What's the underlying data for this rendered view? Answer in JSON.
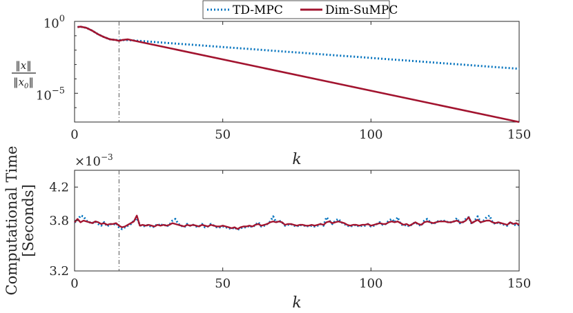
{
  "colors": {
    "td_mpc": "#0072BD",
    "dim_sumpc": "#A2142F",
    "axis": "#262626",
    "vline": "#555555"
  },
  "chart_data": [
    {
      "type": "line",
      "name": "state-norm",
      "yscale": "log",
      "xlim": [
        0,
        150
      ],
      "ylim_exp": [
        -7,
        0
      ],
      "xticks": [
        0,
        50,
        100,
        150
      ],
      "xtick_labels": [
        "0",
        "50",
        "100",
        "150"
      ],
      "ytick_exps": [
        0,
        -5
      ],
      "ytick_labels": [
        {
          "base": "10",
          "exp": "0"
        },
        {
          "base": "10",
          "exp": "−5"
        }
      ],
      "xlabel": "k",
      "ylabel": {
        "num": "‖x‖",
        "den": "‖x",
        "den_sub": "0",
        "den_end": "‖"
      },
      "vline_x": 15,
      "series": [
        {
          "name": "TD-MPC",
          "style": "dotted",
          "points": [
            [
              1,
              -0.4
            ],
            [
              2,
              -0.37
            ],
            [
              4,
              -0.45
            ],
            [
              6,
              -0.65
            ],
            [
              8,
              -0.9
            ],
            [
              10,
              -1.1
            ],
            [
              12,
              -1.25
            ],
            [
              14,
              -1.3
            ],
            [
              15,
              -1.3
            ],
            [
              18,
              -1.3
            ],
            [
              150,
              -3.3
            ]
          ]
        },
        {
          "name": "Dim-SuMPC",
          "style": "solid",
          "points": [
            [
              1,
              -0.4
            ],
            [
              2,
              -0.37
            ],
            [
              4,
              -0.45
            ],
            [
              6,
              -0.65
            ],
            [
              8,
              -0.9
            ],
            [
              10,
              -1.1
            ],
            [
              12,
              -1.25
            ],
            [
              14,
              -1.3
            ],
            [
              15,
              -1.35
            ],
            [
              16,
              -1.3
            ],
            [
              18,
              -1.25
            ],
            [
              150,
              -7.0
            ]
          ]
        }
      ]
    },
    {
      "type": "line",
      "name": "computational-time",
      "xlim": [
        0,
        150
      ],
      "ylim": [
        3.2,
        4.4
      ],
      "xticks": [
        0,
        50,
        100,
        150
      ],
      "xtick_labels": [
        "0",
        "50",
        "100",
        "150"
      ],
      "yticks": [
        3.2,
        3.8,
        4.2
      ],
      "ytick_labels": [
        "3.2",
        "3.8",
        "4.2"
      ],
      "multiplier": {
        "base": "×10",
        "exp": "−3"
      },
      "xlabel": "k",
      "ylabel_lines": [
        "Computational Time",
        "[Seconds]"
      ],
      "vline_x": 15,
      "series": [
        {
          "name": "TD-MPC",
          "style": "dotted",
          "values": [
            3.78,
            3.8,
            3.86,
            3.85,
            3.8,
            3.78,
            3.77,
            3.79,
            3.76,
            3.74,
            3.78,
            3.73,
            3.76,
            3.75,
            3.77,
            3.72,
            3.7,
            3.72,
            3.74,
            3.76,
            3.8,
            3.83,
            3.75,
            3.73,
            3.74,
            3.75,
            3.72,
            3.73,
            3.76,
            3.74,
            3.76,
            3.73,
            3.75,
            3.8,
            3.82,
            3.76,
            3.74,
            3.72,
            3.76,
            3.74,
            3.75,
            3.73,
            3.73,
            3.76,
            3.72,
            3.73,
            3.76,
            3.74,
            3.72,
            3.72,
            3.73,
            3.72,
            3.71,
            3.7,
            3.72,
            3.69,
            3.71,
            3.72,
            3.72,
            3.74,
            3.72,
            3.75,
            3.78,
            3.73,
            3.74,
            3.76,
            3.79,
            3.85,
            3.78,
            3.8,
            3.78,
            3.74,
            3.75,
            3.76,
            3.74,
            3.73,
            3.75,
            3.74,
            3.74,
            3.73,
            3.74,
            3.73,
            3.74,
            3.76,
            3.74,
            3.84,
            3.8,
            3.76,
            3.8,
            3.82,
            3.78,
            3.76,
            3.74,
            3.73,
            3.74,
            3.75,
            3.73,
            3.74,
            3.74,
            3.76,
            3.73,
            3.74,
            3.76,
            3.78,
            3.75,
            3.76,
            3.8,
            3.82,
            3.78,
            3.84,
            3.76,
            3.74,
            3.75,
            3.73,
            3.76,
            3.78,
            3.75,
            3.74,
            3.8,
            3.82,
            3.78,
            3.76,
            3.78,
            3.8,
            3.79,
            3.8,
            3.78,
            3.78,
            3.79,
            3.83,
            3.77,
            3.78,
            3.82,
            3.84,
            3.76,
            3.8,
            3.85,
            3.78,
            3.8,
            3.84,
            3.86,
            3.78,
            3.76,
            3.78,
            3.76,
            3.75,
            3.74,
            3.78,
            3.76,
            3.74,
            3.75
          ]
        },
        {
          "name": "Dim-SuMPC",
          "style": "solid",
          "values": [
            3.78,
            3.82,
            3.78,
            3.8,
            3.79,
            3.78,
            3.77,
            3.79,
            3.78,
            3.76,
            3.77,
            3.75,
            3.76,
            3.76,
            3.77,
            3.74,
            3.72,
            3.73,
            3.75,
            3.77,
            3.79,
            3.86,
            3.74,
            3.75,
            3.74,
            3.75,
            3.74,
            3.73,
            3.75,
            3.74,
            3.75,
            3.74,
            3.75,
            3.77,
            3.76,
            3.75,
            3.74,
            3.73,
            3.75,
            3.74,
            3.75,
            3.74,
            3.73,
            3.75,
            3.74,
            3.73,
            3.75,
            3.74,
            3.73,
            3.73,
            3.74,
            3.73,
            3.72,
            3.71,
            3.72,
            3.7,
            3.72,
            3.73,
            3.73,
            3.74,
            3.73,
            3.75,
            3.76,
            3.74,
            3.75,
            3.76,
            3.78,
            3.79,
            3.78,
            3.79,
            3.78,
            3.75,
            3.76,
            3.76,
            3.75,
            3.74,
            3.75,
            3.75,
            3.74,
            3.74,
            3.75,
            3.74,
            3.75,
            3.76,
            3.75,
            3.78,
            3.79,
            3.77,
            3.78,
            3.79,
            3.78,
            3.77,
            3.75,
            3.74,
            3.75,
            3.75,
            3.74,
            3.75,
            3.75,
            3.76,
            3.74,
            3.75,
            3.76,
            3.77,
            3.76,
            3.76,
            3.78,
            3.79,
            3.78,
            3.79,
            3.77,
            3.75,
            3.76,
            3.74,
            3.76,
            3.78,
            3.76,
            3.75,
            3.78,
            3.79,
            3.78,
            3.77,
            3.78,
            3.79,
            3.79,
            3.79,
            3.78,
            3.78,
            3.79,
            3.8,
            3.78,
            3.78,
            3.8,
            3.84,
            3.77,
            3.79,
            3.81,
            3.78,
            3.79,
            3.8,
            3.8,
            3.78,
            3.77,
            3.78,
            3.77,
            3.76,
            3.75,
            3.78,
            3.76,
            3.77,
            3.75
          ]
        }
      ]
    }
  ],
  "legend": {
    "placement": "top",
    "entries": [
      "TD-MPC",
      "Dim-SuMPC"
    ]
  }
}
